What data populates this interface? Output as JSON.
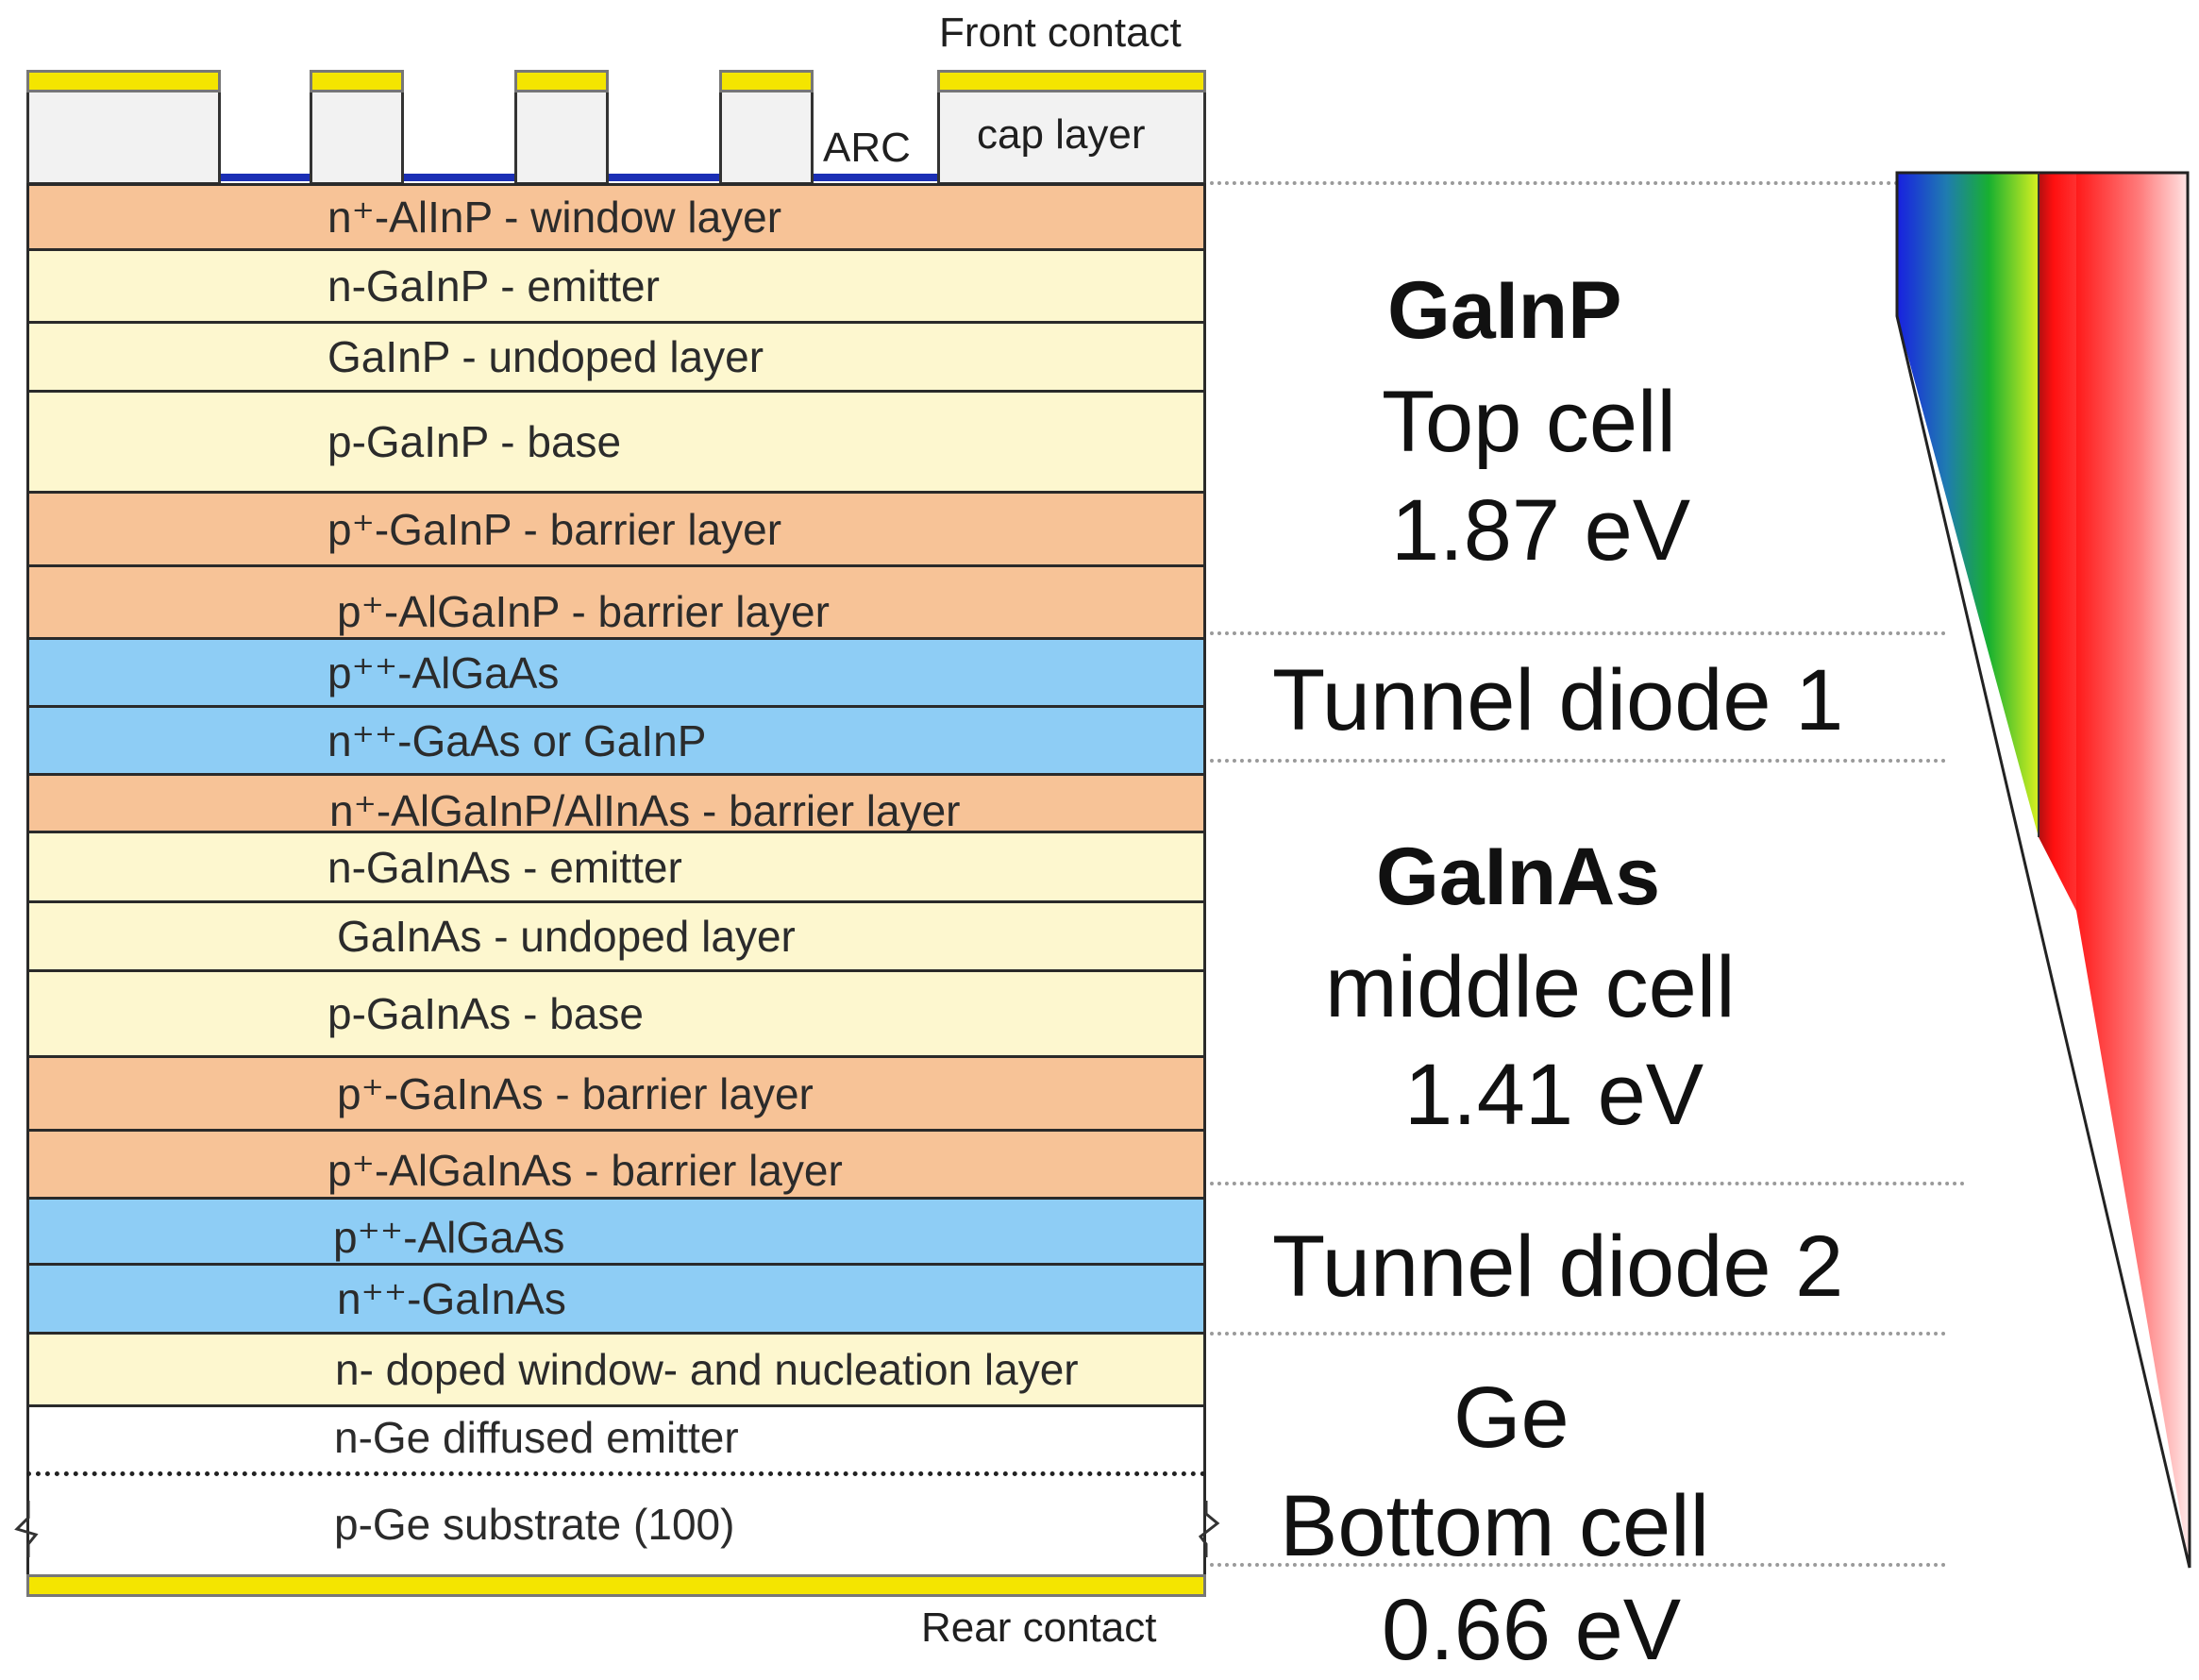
{
  "top_labels": {
    "front_contact": "Front contact",
    "arc": "ARC",
    "cap_layer": "cap layer",
    "rear_contact": "Rear contact"
  },
  "layers": [
    {
      "label": "n⁺-AlInP - window layer",
      "type": "barrier"
    },
    {
      "label": "n-GaInP - emitter",
      "type": "active"
    },
    {
      "label": "GaInP - undoped layer",
      "type": "active"
    },
    {
      "label": "p-GaInP - base",
      "type": "active"
    },
    {
      "label": "p⁺-GaInP - barrier layer",
      "type": "barrier"
    },
    {
      "label": "p⁺-AlGaInP - barrier layer",
      "type": "barrier"
    },
    {
      "label": "p⁺⁺-AlGaAs",
      "type": "tunnel"
    },
    {
      "label": "n⁺⁺-GaAs or GaInP",
      "type": "tunnel"
    },
    {
      "label": "n⁺-AlGaInP/AlInAs - barrier layer",
      "type": "barrier"
    },
    {
      "label": "n-GaInAs - emitter",
      "type": "active"
    },
    {
      "label": "GaInAs - undoped layer",
      "type": "active"
    },
    {
      "label": "p-GaInAs - base",
      "type": "active"
    },
    {
      "label": "p⁺-GaInAs - barrier layer",
      "type": "barrier"
    },
    {
      "label": "p⁺-AlGaInAs - barrier layer",
      "type": "barrier"
    },
    {
      "label": "p⁺⁺-AlGaAs",
      "type": "tunnel"
    },
    {
      "label": "n⁺⁺-GaInAs",
      "type": "tunnel"
    },
    {
      "label": "n- doped window- and nucleation layer",
      "type": "active"
    },
    {
      "label": "n-Ge diffused emitter",
      "type": "substrate"
    },
    {
      "label": "p-Ge substrate (100)",
      "type": "substrate"
    }
  ],
  "cells": {
    "top": {
      "material": "GaInP",
      "name": "Top cell",
      "bandgap": "1.87 eV"
    },
    "tunnel1": {
      "name": "Tunnel diode 1"
    },
    "middle": {
      "material": "GaInAs",
      "name": "middle cell",
      "bandgap": "1.41 eV"
    },
    "tunnel2": {
      "name": "Tunnel diode 2"
    },
    "bottom": {
      "material": "Ge",
      "name": "Bottom cell",
      "bandgap": "0.66 eV"
    }
  },
  "colors": {
    "barrier": "#f7c397",
    "active": "#fdf7cf",
    "tunnel": "#8ecdf5",
    "substrate": "#ffffff",
    "contact": "#f4e500",
    "arc": "#1b2fb5",
    "cap": "#f2f2f2"
  },
  "spectrum_icon": "absorption-spectrum-wedge"
}
